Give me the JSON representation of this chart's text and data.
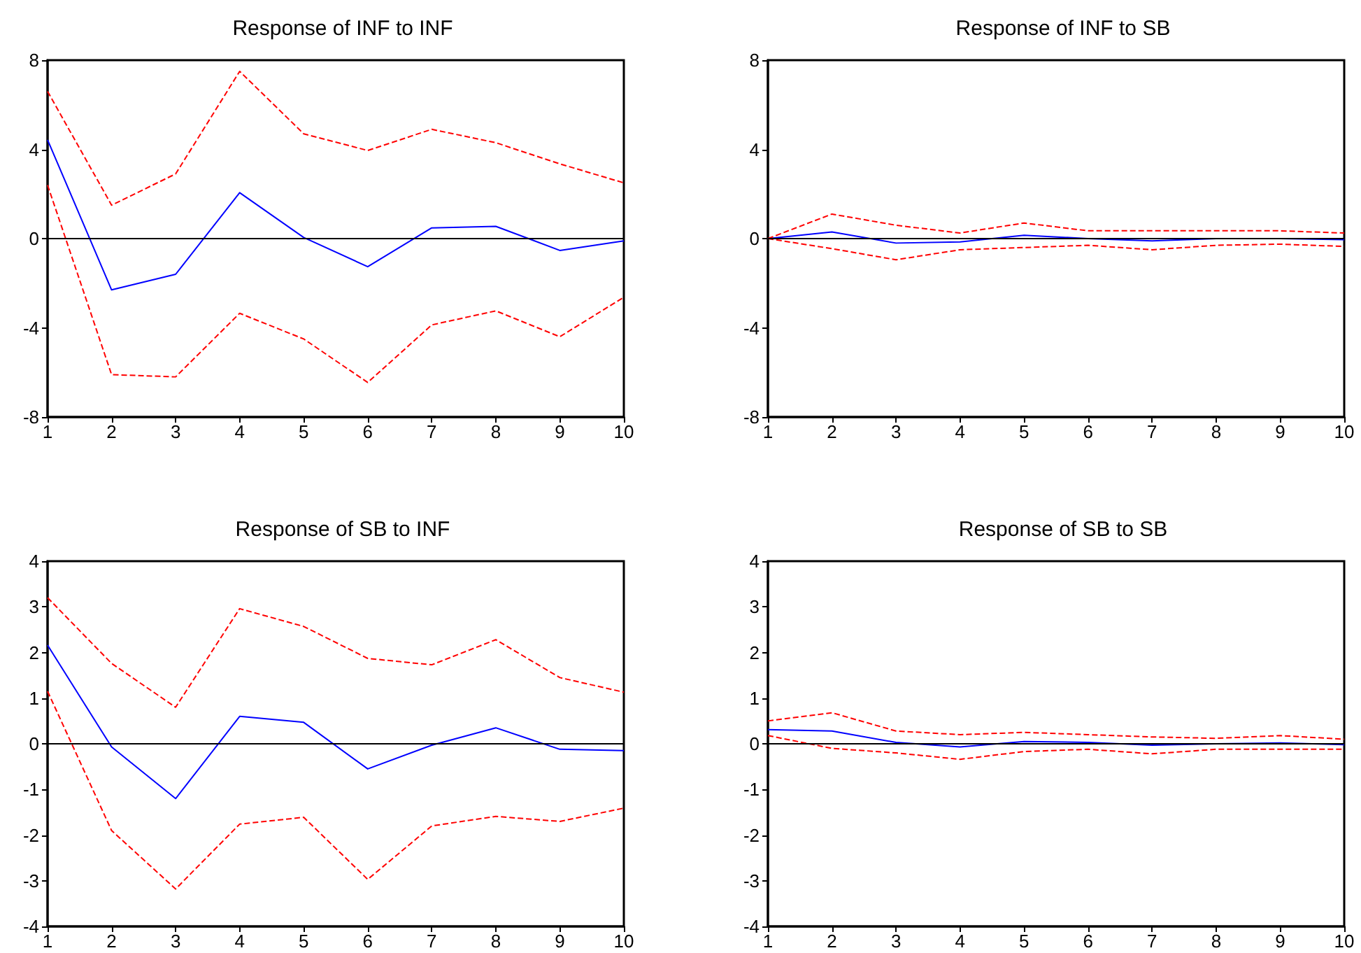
{
  "chart_data": [
    {
      "type": "line",
      "title": "Response of INF to INF",
      "x": [
        1,
        2,
        3,
        4,
        5,
        6,
        7,
        8,
        9,
        10
      ],
      "xlim": [
        1,
        10
      ],
      "xticks": [
        1,
        2,
        3,
        4,
        5,
        6,
        7,
        8,
        9,
        10
      ],
      "ylim": [
        -8,
        8
      ],
      "yticks": [
        -8,
        -4,
        0,
        4,
        8
      ],
      "grid": false,
      "marker": "none",
      "ref_lines": [
        {
          "axis": "y",
          "value": 0,
          "color": "#000000"
        }
      ],
      "series": [
        {
          "color": "#0000ff",
          "line_style": "solid",
          "values": [
            4.43,
            -2.3,
            -1.6,
            2.06,
            0.05,
            -1.26,
            0.48,
            0.55,
            -0.53,
            -0.1
          ]
        },
        {
          "color": "#ff0000",
          "line_style": "dashed",
          "values": [
            6.6,
            1.5,
            2.9,
            7.5,
            4.7,
            3.95,
            4.9,
            4.3,
            3.35,
            2.5
          ]
        },
        {
          "color": "#ff0000",
          "line_style": "dashed",
          "values": [
            2.4,
            -6.1,
            -6.2,
            -3.35,
            -4.5,
            -6.45,
            -3.87,
            -3.24,
            -4.4,
            -2.63
          ]
        }
      ]
    },
    {
      "type": "line",
      "title": "Response of INF to SB",
      "x": [
        1,
        2,
        3,
        4,
        5,
        6,
        7,
        8,
        9,
        10
      ],
      "xlim": [
        1,
        10
      ],
      "xticks": [
        1,
        2,
        3,
        4,
        5,
        6,
        7,
        8,
        9,
        10
      ],
      "ylim": [
        -8,
        8
      ],
      "yticks": [
        -8,
        -4,
        0,
        4,
        8
      ],
      "grid": false,
      "marker": "none",
      "ref_lines": [
        {
          "axis": "y",
          "value": 0,
          "color": "#000000"
        }
      ],
      "series": [
        {
          "color": "#0000ff",
          "line_style": "solid",
          "values": [
            0,
            0.3,
            -0.2,
            -0.15,
            0.15,
            0,
            -0.1,
            0,
            0,
            -0.05
          ]
        },
        {
          "color": "#ff0000",
          "line_style": "dashed",
          "values": [
            0,
            1.1,
            0.6,
            0.25,
            0.7,
            0.35,
            0.35,
            0.35,
            0.35,
            0.25
          ]
        },
        {
          "color": "#ff0000",
          "line_style": "dashed",
          "values": [
            0,
            -0.45,
            -0.95,
            -0.5,
            -0.4,
            -0.3,
            -0.5,
            -0.3,
            -0.25,
            -0.35
          ]
        }
      ]
    },
    {
      "type": "line",
      "title": "Response of SB to INF",
      "x": [
        1,
        2,
        3,
        4,
        5,
        6,
        7,
        8,
        9,
        10
      ],
      "xlim": [
        1,
        10
      ],
      "xticks": [
        1,
        2,
        3,
        4,
        5,
        6,
        7,
        8,
        9,
        10
      ],
      "ylim": [
        -4,
        4
      ],
      "yticks": [
        -4,
        -3,
        -2,
        -1,
        0,
        1,
        2,
        3,
        4
      ],
      "grid": false,
      "marker": "none",
      "ref_lines": [
        {
          "axis": "y",
          "value": 0,
          "color": "#000000"
        }
      ],
      "series": [
        {
          "color": "#0000ff",
          "line_style": "solid",
          "values": [
            2.16,
            -0.07,
            -1.2,
            0.6,
            0.47,
            -0.55,
            -0.03,
            0.35,
            -0.12,
            -0.15
          ]
        },
        {
          "color": "#ff0000",
          "line_style": "dashed",
          "values": [
            3.2,
            1.76,
            0.8,
            2.96,
            2.57,
            1.87,
            1.73,
            2.28,
            1.45,
            1.13
          ]
        },
        {
          "color": "#ff0000",
          "line_style": "dashed",
          "values": [
            1.15,
            -1.9,
            -3.18,
            -1.76,
            -1.61,
            -2.97,
            -1.8,
            -1.59,
            -1.7,
            -1.41
          ]
        }
      ]
    },
    {
      "type": "line",
      "title": "Response of SB to SB",
      "x": [
        1,
        2,
        3,
        4,
        5,
        6,
        7,
        8,
        9,
        10
      ],
      "xlim": [
        1,
        10
      ],
      "xticks": [
        1,
        2,
        3,
        4,
        5,
        6,
        7,
        8,
        9,
        10
      ],
      "ylim": [
        -4,
        4
      ],
      "yticks": [
        -4,
        -3,
        -2,
        -1,
        0,
        1,
        2,
        3,
        4
      ],
      "grid": false,
      "marker": "none",
      "ref_lines": [
        {
          "axis": "y",
          "value": 0,
          "color": "#000000"
        }
      ],
      "series": [
        {
          "color": "#0000ff",
          "line_style": "solid",
          "values": [
            0.31,
            0.28,
            0.03,
            -0.07,
            0.05,
            0.03,
            -0.03,
            0,
            0.02,
            -0.02
          ]
        },
        {
          "color": "#ff0000",
          "line_style": "dashed",
          "values": [
            0.5,
            0.68,
            0.28,
            0.2,
            0.25,
            0.2,
            0.15,
            0.12,
            0.18,
            0.1
          ]
        },
        {
          "color": "#ff0000",
          "line_style": "dashed",
          "values": [
            0.18,
            -0.1,
            -0.2,
            -0.34,
            -0.17,
            -0.12,
            -0.22,
            -0.12,
            -0.12,
            -0.12
          ]
        }
      ]
    }
  ]
}
